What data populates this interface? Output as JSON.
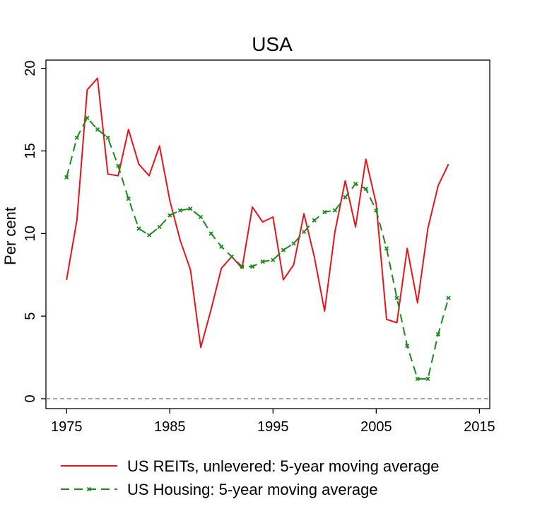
{
  "chart_data": {
    "type": "line",
    "title": "USA",
    "xlabel": "",
    "ylabel": "Per cent",
    "xlim": [
      1973,
      2016
    ],
    "ylim": [
      -0.6,
      20.5
    ],
    "xticks": [
      "1975",
      "1985",
      "1995",
      "2005",
      "2015"
    ],
    "yticks": [
      "0",
      "5",
      "10",
      "15",
      "20"
    ],
    "reference_line": {
      "y": 0,
      "style": "dashed",
      "color": "#888888"
    },
    "legend_position": "bottom",
    "series": [
      {
        "name": "US REITs, unlevered: 5-year moving average",
        "color": "#e8141b",
        "style": "solid",
        "markers": false,
        "x": [
          1975,
          1976,
          1977,
          1978,
          1979,
          1980,
          1981,
          1982,
          1983,
          1984,
          1985,
          1986,
          1987,
          1988,
          1989,
          1990,
          1991,
          1992,
          1993,
          1994,
          1995,
          1996,
          1997,
          1998,
          1999,
          2000,
          2001,
          2002,
          2003,
          2004,
          2005,
          2006,
          2007,
          2008,
          2009,
          2010,
          2011,
          2012
        ],
        "values": [
          7.2,
          10.8,
          18.7,
          19.4,
          13.6,
          13.5,
          16.3,
          14.2,
          13.5,
          15.3,
          12.0,
          9.6,
          7.8,
          3.1,
          5.4,
          7.9,
          8.6,
          7.9,
          11.6,
          10.7,
          11.0,
          7.2,
          8.1,
          11.2,
          8.6,
          5.3,
          10.1,
          13.2,
          10.4,
          14.5,
          11.8,
          4.8,
          4.6,
          9.1,
          5.8,
          10.3,
          12.9,
          14.2
        ]
      },
      {
        "name": "US Housing: 5-year moving average",
        "color": "#1a8a1a",
        "style": "dashed",
        "markers": true,
        "x": [
          1975,
          1976,
          1977,
          1978,
          1979,
          1980,
          1981,
          1982,
          1983,
          1984,
          1985,
          1986,
          1987,
          1988,
          1989,
          1990,
          1991,
          1992,
          1993,
          1994,
          1995,
          1996,
          1997,
          1998,
          1999,
          2000,
          2001,
          2002,
          2003,
          2004,
          2005,
          2006,
          2007,
          2008,
          2009,
          2010,
          2011,
          2012
        ],
        "values": [
          13.4,
          15.8,
          17.0,
          16.3,
          15.8,
          14.1,
          12.1,
          10.3,
          9.9,
          10.4,
          11.1,
          11.4,
          11.5,
          11.0,
          10.0,
          9.2,
          8.6,
          8.0,
          8.0,
          8.3,
          8.4,
          9.0,
          9.4,
          10.1,
          10.8,
          11.3,
          11.4,
          12.2,
          13.0,
          12.7,
          11.4,
          9.1,
          6.1,
          3.2,
          1.2,
          1.2,
          3.9,
          6.1
        ]
      }
    ]
  }
}
